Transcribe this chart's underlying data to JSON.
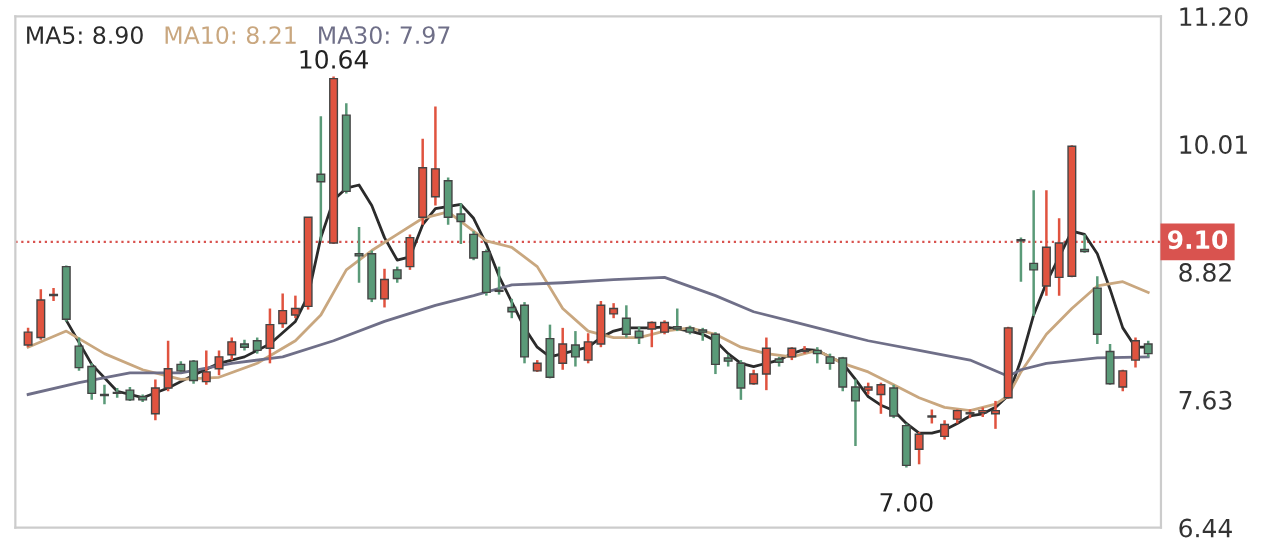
{
  "chart_data": {
    "type": "candlestick",
    "categories": [
      null,
      null,
      null,
      null,
      null,
      null,
      null,
      null,
      null,
      null,
      null,
      null,
      null,
      null,
      null,
      null,
      null,
      null,
      null,
      null,
      null,
      null,
      null,
      null,
      null,
      null,
      null,
      null,
      null,
      null,
      null,
      null,
      null,
      null,
      null,
      null,
      null,
      null,
      null,
      null,
      null,
      null,
      null,
      null,
      null,
      null,
      null,
      null,
      null,
      null,
      null,
      null,
      null,
      null,
      null,
      null,
      null,
      null,
      null,
      null,
      null,
      null,
      null,
      null,
      null,
      null,
      null,
      null,
      null,
      null,
      null,
      null,
      null,
      null,
      null,
      null,
      null,
      null,
      null,
      null,
      null,
      null,
      null,
      null,
      null,
      null,
      null,
      null,
      null
    ],
    "ohlc": [
      [
        8.14,
        8.3,
        8.12,
        8.26
      ],
      [
        8.21,
        8.66,
        8.19,
        8.56
      ],
      [
        8.6,
        8.67,
        8.55,
        8.61
      ],
      [
        8.87,
        8.88,
        8.36,
        8.38
      ],
      [
        8.13,
        8.21,
        7.9,
        7.93
      ],
      [
        7.94,
        7.97,
        7.63,
        7.69
      ],
      [
        7.68,
        7.77,
        7.59,
        7.67
      ],
      [
        7.7,
        7.74,
        7.65,
        7.69
      ],
      [
        7.72,
        7.75,
        7.62,
        7.63
      ],
      [
        7.66,
        7.68,
        7.61,
        7.63
      ],
      [
        7.5,
        7.82,
        7.44,
        7.74
      ],
      [
        7.74,
        8.18,
        7.71,
        7.92
      ],
      [
        7.96,
        7.99,
        7.89,
        7.9
      ],
      [
        7.99,
        8.0,
        7.78,
        7.81
      ],
      [
        7.8,
        8.09,
        7.77,
        7.89
      ],
      [
        7.92,
        8.09,
        7.86,
        8.03
      ],
      [
        8.05,
        8.21,
        8.0,
        8.17
      ],
      [
        8.15,
        8.19,
        8.09,
        8.12
      ],
      [
        8.18,
        8.21,
        8.06,
        8.09
      ],
      [
        8.11,
        8.48,
        7.97,
        8.33
      ],
      [
        8.34,
        8.62,
        8.3,
        8.46
      ],
      [
        8.42,
        8.6,
        8.39,
        8.48
      ],
      [
        8.5,
        9.33,
        8.47,
        9.33
      ],
      [
        9.73,
        10.27,
        9.11,
        9.66
      ],
      [
        9.09,
        10.64,
        9.08,
        10.62
      ],
      [
        10.28,
        10.39,
        9.55,
        9.57
      ],
      [
        8.99,
        9.24,
        8.72,
        8.97
      ],
      [
        8.99,
        9.02,
        8.54,
        8.57
      ],
      [
        8.57,
        8.85,
        8.49,
        8.75
      ],
      [
        8.84,
        8.87,
        8.72,
        8.76
      ],
      [
        8.87,
        9.17,
        8.84,
        9.14
      ],
      [
        9.33,
        10.06,
        9.26,
        9.79
      ],
      [
        9.52,
        10.36,
        9.44,
        9.78
      ],
      [
        9.67,
        9.7,
        9.26,
        9.33
      ],
      [
        9.36,
        9.46,
        9.08,
        9.29
      ],
      [
        9.17,
        9.2,
        8.93,
        8.95
      ],
      [
        9.01,
        9.03,
        8.6,
        8.63
      ],
      [
        8.65,
        8.87,
        8.61,
        8.64
      ],
      [
        8.49,
        8.57,
        8.39,
        8.45
      ],
      [
        8.51,
        8.54,
        7.97,
        8.03
      ],
      [
        7.9,
        8.0,
        7.89,
        7.97
      ],
      [
        8.2,
        8.33,
        7.83,
        7.84
      ],
      [
        7.97,
        8.3,
        7.91,
        8.15
      ],
      [
        8.14,
        8.27,
        7.94,
        8.03
      ],
      [
        8.0,
        8.25,
        7.97,
        8.17
      ],
      [
        8.15,
        8.55,
        8.12,
        8.51
      ],
      [
        8.43,
        8.53,
        8.39,
        8.48
      ],
      [
        8.39,
        8.51,
        8.21,
        8.24
      ],
      [
        8.27,
        8.31,
        8.15,
        8.21
      ],
      [
        8.29,
        8.36,
        8.12,
        8.35
      ],
      [
        8.26,
        8.37,
        8.24,
        8.35
      ],
      [
        8.31,
        8.48,
        8.27,
        8.29
      ],
      [
        8.3,
        8.32,
        8.24,
        8.26
      ],
      [
        8.28,
        8.3,
        8.18,
        8.26
      ],
      [
        8.24,
        8.26,
        7.87,
        7.96
      ],
      [
        8.02,
        8.05,
        7.94,
        7.99
      ],
      [
        7.97,
        8.0,
        7.63,
        7.74
      ],
      [
        7.78,
        7.91,
        7.77,
        7.87
      ],
      [
        7.87,
        8.21,
        7.72,
        8.11
      ],
      [
        8.01,
        8.03,
        7.94,
        7.98
      ],
      [
        8.03,
        8.12,
        8.0,
        8.11
      ],
      [
        8.08,
        8.13,
        8.06,
        8.09
      ],
      [
        8.09,
        8.12,
        7.97,
        8.06
      ],
      [
        8.03,
        8.06,
        7.91,
        7.97
      ],
      [
        8.02,
        8.03,
        7.71,
        7.75
      ],
      [
        7.75,
        7.82,
        7.2,
        7.62
      ],
      [
        7.72,
        7.79,
        7.68,
        7.75
      ],
      [
        7.68,
        7.79,
        7.5,
        7.77
      ],
      [
        7.74,
        7.77,
        7.46,
        7.48
      ],
      [
        7.39,
        7.41,
        7.0,
        7.02
      ],
      [
        7.17,
        7.33,
        7.03,
        7.31
      ],
      [
        7.47,
        7.54,
        7.41,
        7.48
      ],
      [
        7.29,
        7.44,
        7.26,
        7.4
      ],
      [
        7.45,
        7.54,
        7.41,
        7.53
      ],
      [
        7.5,
        7.54,
        7.46,
        7.51
      ],
      [
        7.51,
        7.56,
        7.47,
        7.53
      ],
      [
        7.5,
        7.62,
        7.36,
        7.53
      ],
      [
        7.65,
        8.31,
        7.64,
        8.3
      ],
      [
        9.12,
        9.14,
        8.73,
        9.11
      ],
      [
        8.9,
        9.58,
        8.41,
        8.84
      ],
      [
        8.69,
        9.58,
        8.6,
        9.05
      ],
      [
        8.77,
        9.32,
        8.6,
        9.09
      ],
      [
        8.78,
        10.0,
        8.77,
        9.99
      ],
      [
        9.03,
        9.17,
        9.0,
        9.01
      ],
      [
        8.67,
        8.78,
        8.15,
        8.24
      ],
      [
        8.08,
        8.15,
        7.77,
        7.78
      ],
      [
        7.75,
        7.91,
        7.71,
        7.9
      ],
      [
        8.0,
        8.21,
        7.93,
        8.18
      ],
      [
        8.15,
        8.18,
        8.03,
        8.06
      ]
    ],
    "colors": [
      "#e0533f",
      "#e0533f",
      "#e0533f",
      "#5a9a78",
      "#5a9a78",
      "#5a9a78",
      "#5a9a78",
      "#5a9a78",
      "#5a9a78",
      "#5a9a78",
      "#e0533f",
      "#e0533f",
      "#5a9a78",
      "#5a9a78",
      "#e0533f",
      "#e0533f",
      "#e0533f",
      "#5a9a78",
      "#5a9a78",
      "#e0533f",
      "#e0533f",
      "#e0533f",
      "#e0533f",
      "#5a9a78",
      "#e0533f",
      "#5a9a78",
      "#5a9a78",
      "#5a9a78",
      "#e0533f",
      "#5a9a78",
      "#e0533f",
      "#e0533f",
      "#e0533f",
      "#5a9a78",
      "#5a9a78",
      "#5a9a78",
      "#5a9a78",
      "#5a9a78",
      "#5a9a78",
      "#5a9a78",
      "#e0533f",
      "#5a9a78",
      "#e0533f",
      "#5a9a78",
      "#e0533f",
      "#e0533f",
      "#e0533f",
      "#5a9a78",
      "#5a9a78",
      "#e0533f",
      "#e0533f",
      "#5a9a78",
      "#5a9a78",
      "#5a9a78",
      "#5a9a78",
      "#5a9a78",
      "#5a9a78",
      "#e0533f",
      "#e0533f",
      "#5a9a78",
      "#e0533f",
      "#e0533f",
      "#5a9a78",
      "#5a9a78",
      "#5a9a78",
      "#5a9a78",
      "#e0533f",
      "#e0533f",
      "#5a9a78",
      "#5a9a78",
      "#e0533f",
      "#e0533f",
      "#e0533f",
      "#e0533f",
      "#e0533f",
      "#e0533f",
      "#e0533f",
      "#e0533f",
      "#5a9a78",
      "#5a9a78",
      "#e0533f",
      "#e0533f",
      "#e0533f",
      "#5a9a78",
      "#5a9a78",
      "#5a9a78",
      "#e0533f",
      "#e0533f",
      "#5a9a78"
    ],
    "series": [
      {
        "name": "MA5: 8.90",
        "type": "line",
        "color": "#2b2b2b",
        "values": [
          null,
          null,
          null,
          8.37,
          null,
          7.96,
          null,
          7.71,
          null,
          7.65,
          null,
          7.74,
          null,
          7.86,
          null,
          7.97,
          null,
          8.03,
          null,
          8.15,
          null,
          8.36,
          8.6,
          9.14,
          9.49,
          9.6,
          9.63,
          9.44,
          9.14,
          8.93,
          8.96,
          9.26,
          9.41,
          null,
          9.45,
          9.32,
          9.08,
          8.78,
          8.54,
          8.3,
          8.12,
          8.03,
          8.06,
          8.09,
          8.12,
          8.21,
          8.27,
          8.3,
          8.3,
          8.3,
          8.31,
          8.29,
          8.27,
          8.24,
          8.18,
          8.06,
          7.97,
          7.94,
          7.97,
          8.0,
          8.06,
          8.1,
          8.09,
          8.03,
          7.97,
          7.82,
          7.66,
          7.58,
          7.53,
          7.41,
          7.32,
          7.32,
          7.35,
          7.41,
          7.48,
          7.5,
          7.56,
          7.67,
          8.0,
          8.42,
          8.72,
          8.96,
          9.2,
          9.17,
          8.99,
          8.66,
          8.3,
          8.12,
          8.12
        ]
      },
      {
        "name": "MA10: 8.21",
        "type": "line",
        "color": "#c9a77f",
        "values": [
          8.12,
          null,
          null,
          8.27,
          null,
          null,
          8.06,
          null,
          null,
          7.91,
          null,
          null,
          7.82,
          null,
          null,
          7.84,
          null,
          null,
          7.97,
          null,
          null,
          8.18,
          null,
          8.42,
          null,
          8.84,
          null,
          9.02,
          null,
          9.17,
          null,
          9.32,
          null,
          9.38,
          null,
          9.2,
          9.11,
          null,
          9.05,
          null,
          8.87,
          null,
          8.48,
          null,
          8.27,
          null,
          8.21,
          null,
          8.21,
          null,
          8.27,
          null,
          8.3,
          null,
          8.24,
          null,
          8.12,
          null,
          8.06,
          null,
          8.03,
          null,
          8.09,
          null,
          7.97,
          null,
          7.89,
          null,
          7.77,
          null,
          7.65,
          null,
          7.56,
          null,
          7.53,
          null,
          7.59,
          7.67,
          7.89,
          null,
          8.24,
          null,
          8.48,
          null,
          8.69,
          null,
          8.73,
          null,
          8.63
        ]
      },
      {
        "name": "MA30: 7.97",
        "type": "line",
        "color": "#6f6f88",
        "values": [
          7.68,
          null,
          null,
          null,
          7.79,
          null,
          null,
          null,
          7.88,
          null,
          null,
          null,
          7.88,
          null,
          null,
          null,
          7.97,
          null,
          null,
          null,
          8.03,
          null,
          null,
          null,
          8.18,
          null,
          null,
          null,
          8.36,
          null,
          null,
          null,
          8.51,
          null,
          null,
          8.6,
          null,
          null,
          8.7,
          null,
          null,
          null,
          8.72,
          null,
          null,
          null,
          8.75,
          null,
          null,
          null,
          8.77,
          null,
          null,
          null,
          8.6,
          null,
          null,
          8.45,
          null,
          null,
          8.36,
          null,
          8.3,
          null,
          8.24,
          null,
          8.18,
          null,
          null,
          null,
          8.09,
          null,
          null,
          null,
          8.0,
          null,
          null,
          7.85,
          7.91,
          null,
          7.97,
          null,
          null,
          null,
          8.02,
          null,
          null,
          null,
          8.03
        ]
      }
    ],
    "ylim": [
      6.44,
      11.2
    ],
    "yticks": [
      {
        "value": 11.2,
        "label": "11.20"
      },
      {
        "value": 10.01,
        "label": "10.01"
      },
      {
        "value": 8.82,
        "label": "8.82"
      },
      {
        "value": 7.63,
        "label": "7.63"
      },
      {
        "value": 6.44,
        "label": "6.44"
      }
    ],
    "tick_labels": "y",
    "legend": "top left",
    "line_style": "solid",
    "ref_lines": [
      {
        "axis": "y",
        "value": 9.1,
        "label": "9.10",
        "color": "#d9534f",
        "line_style": "dotted"
      }
    ],
    "annotations": [
      {
        "text": "10.64",
        "y": 10.64
      },
      {
        "text": "7.00",
        "y": 7.0
      }
    ]
  }
}
